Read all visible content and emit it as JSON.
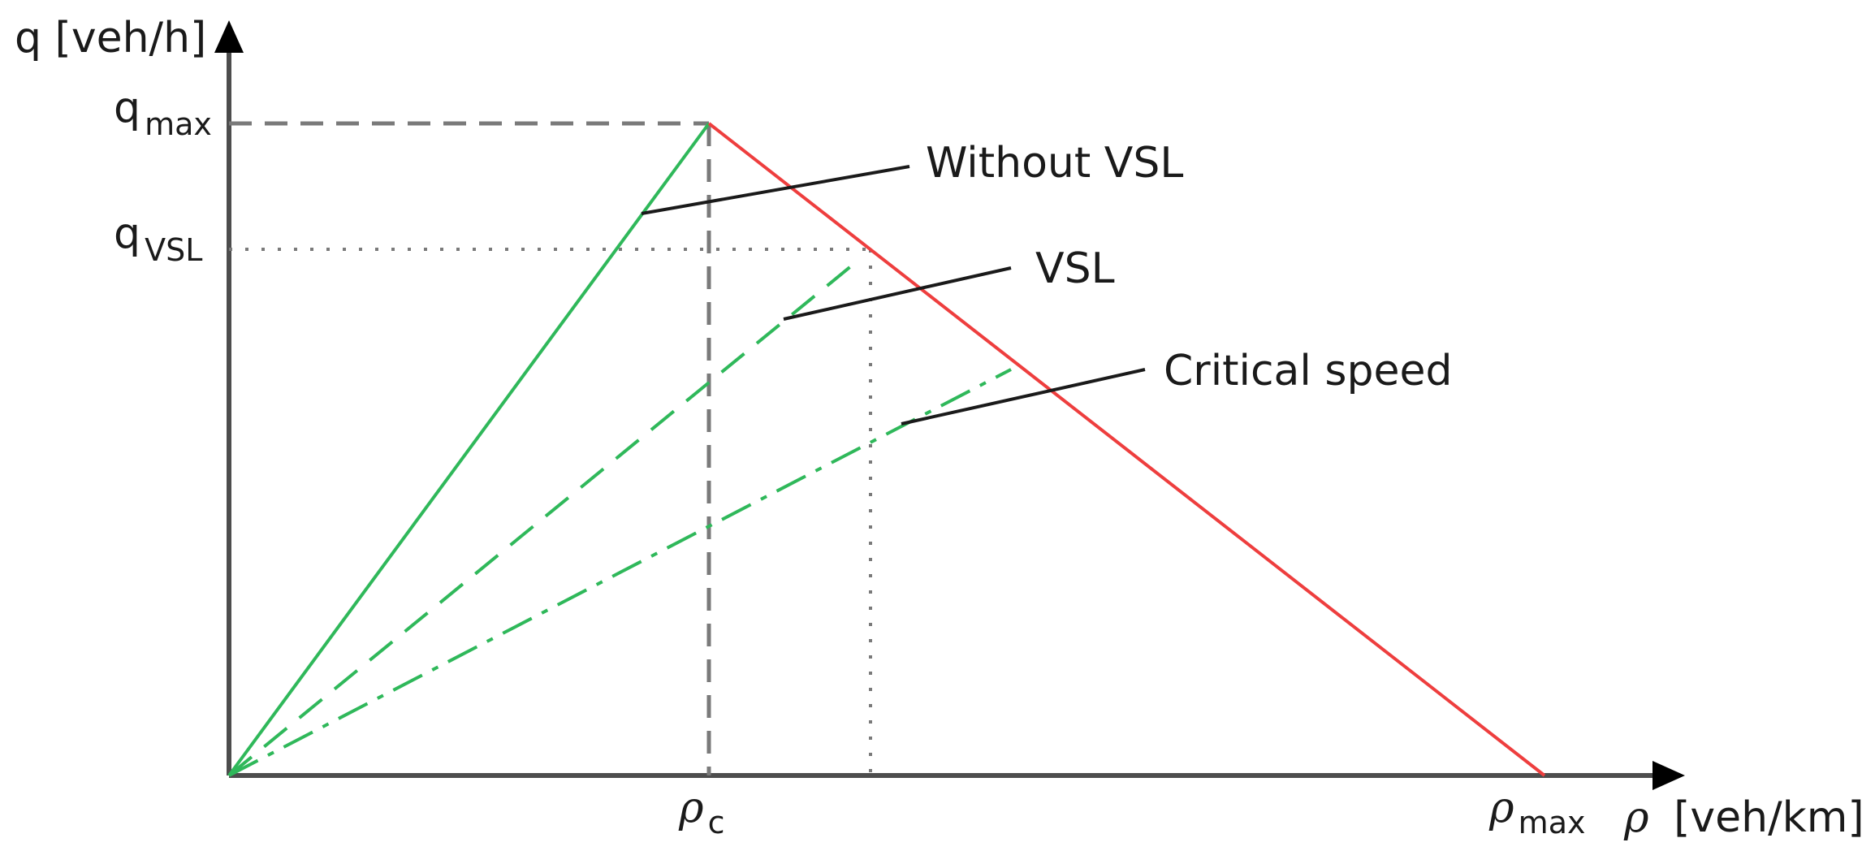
{
  "axes": {
    "y_label": "q [veh/h]",
    "x_label_symbol": "ρ",
    "x_label_unit": "[veh/km]"
  },
  "y_ticks": {
    "q_max": {
      "base": "q",
      "sub": "max"
    },
    "q_vsl": {
      "base": "q",
      "sub": "VSL"
    }
  },
  "x_ticks": {
    "rho_c": {
      "base": "ρ",
      "sub": "c"
    },
    "rho_max": {
      "base": "ρ",
      "sub": "max"
    }
  },
  "annotations": {
    "without_vsl": "Without VSL",
    "vsl": "VSL",
    "critical_speed": "Critical speed"
  },
  "colors": {
    "axis": "#4d4d4d",
    "free_flow": "#2fb85a",
    "congested": "#ee3e3e",
    "guide": "#7a7a7a",
    "leader": "#1a1a1a"
  }
}
